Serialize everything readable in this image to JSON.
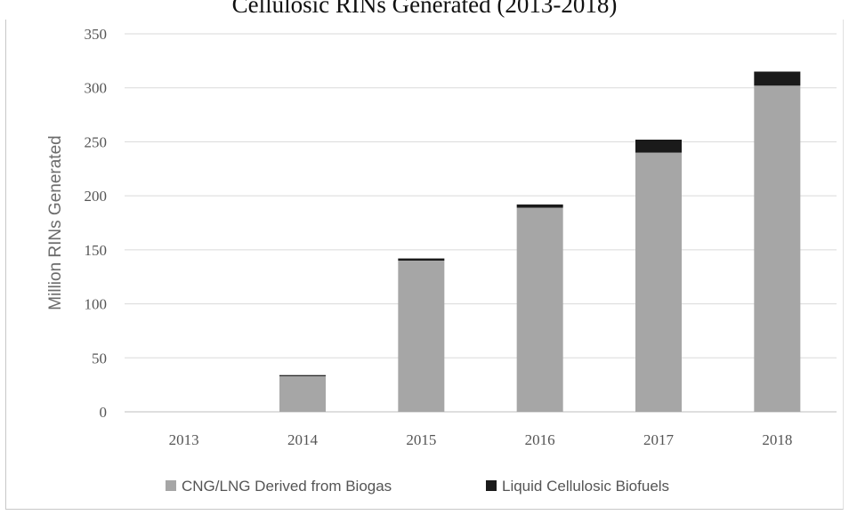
{
  "chart_data": {
    "type": "bar",
    "stacked": true,
    "title": "Cellulosic RINs Generated (2013-2018)",
    "xlabel": "",
    "ylabel": "Million RINs Generated",
    "ylim": [
      0,
      350
    ],
    "yticks": [
      0,
      50,
      100,
      150,
      200,
      250,
      300,
      350
    ],
    "grid": true,
    "legend_position": "bottom",
    "categories": [
      "2013",
      "2014",
      "2015",
      "2016",
      "2017",
      "2018"
    ],
    "series": [
      {
        "name": "CNG/LNG Derived from Biogas",
        "color": "#a6a6a6",
        "values": [
          0,
          33,
          140,
          189,
          240,
          302
        ]
      },
      {
        "name": "Liquid Cellulosic Biofuels",
        "color": "#1a1a1a",
        "values": [
          0,
          1,
          2,
          3,
          12,
          13
        ]
      }
    ]
  }
}
